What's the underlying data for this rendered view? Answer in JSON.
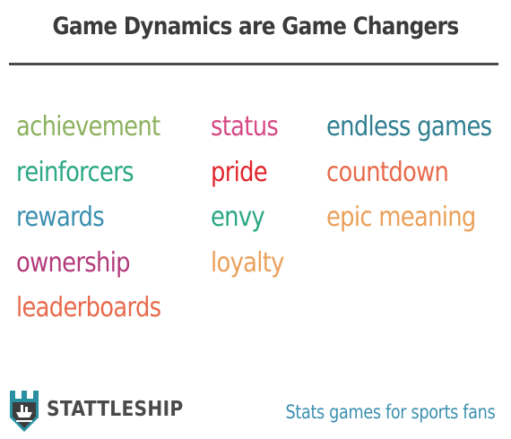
{
  "title": "Game Dynamics are Game Changers",
  "columns": [
    {
      "items": [
        {
          "text": "achievement",
          "color": "#8db15f"
        },
        {
          "text": "reinforcers",
          "color": "#2aa783"
        },
        {
          "text": "rewards",
          "color": "#3b8fb0"
        },
        {
          "text": "ownership",
          "color": "#b33a7a"
        },
        {
          "text": "leaderboards",
          "color": "#e86a4c"
        }
      ]
    },
    {
      "items": [
        {
          "text": "status",
          "color": "#d64a85"
        },
        {
          "text": "pride",
          "color": "#e0242b"
        },
        {
          "text": "envy",
          "color": "#2aa783"
        },
        {
          "text": "loyalty",
          "color": "#eaa05a"
        }
      ]
    },
    {
      "items": [
        {
          "text": "endless games",
          "color": "#2f7f91"
        },
        {
          "text": "countdown",
          "color": "#e86a4c"
        },
        {
          "text": "epic meaning",
          "color": "#eaa05a"
        }
      ]
    }
  ],
  "footer": {
    "brand": "STATTLESHIP",
    "tagline": "Stats games for sports fans",
    "logo_icon": "stattleship-shield-icon"
  }
}
